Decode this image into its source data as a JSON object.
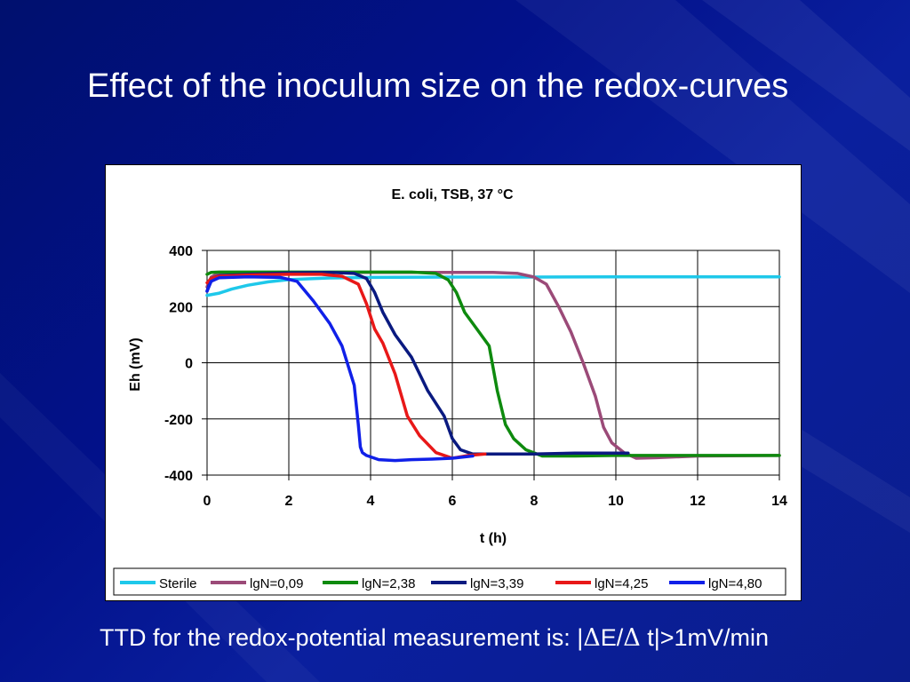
{
  "slide": {
    "title": "Effect of the inoculum size on the redox-curves",
    "footer_prefix": "TTD for the redox-potential measurement is: |",
    "footer_delta1": "Δ",
    "footer_mid": "E/",
    "footer_delta2": "Δ",
    "footer_suffix": " t|>1mV/min",
    "background_color": "#02118a"
  },
  "chart_data": {
    "type": "line",
    "title": "E. coli, TSB, 37 °C",
    "xlabel": "t (h)",
    "ylabel": "Eh (mV)",
    "xlim": [
      0,
      14
    ],
    "ylim": [
      -400,
      400
    ],
    "xticks": [
      0,
      2,
      4,
      6,
      8,
      10,
      12,
      14
    ],
    "yticks": [
      -400,
      -200,
      0,
      200,
      400
    ],
    "xtick_labels": [
      "0",
      "2",
      "4",
      "6",
      "8",
      "10",
      "12",
      "14"
    ],
    "ytick_labels": [
      "-400",
      "-200",
      "0",
      "200",
      "400"
    ],
    "grid": true,
    "legend_position": "bottom",
    "series": [
      {
        "name": "Sterile",
        "color": "#1ec8ea",
        "x": [
          0,
          0.3,
          0.6,
          1.0,
          1.5,
          2.0,
          3.0,
          4.0,
          6.0,
          8.0,
          10.0,
          12.0,
          14.0
        ],
        "y": [
          240,
          248,
          262,
          276,
          288,
          296,
          302,
          304,
          305,
          305,
          306,
          306,
          306
        ]
      },
      {
        "name": "lgN=0,09",
        "color": "#9b4a78",
        "x": [
          0,
          0.1,
          0.3,
          1.0,
          3.0,
          5.0,
          7.0,
          7.6,
          8.0,
          8.3,
          8.6,
          8.9,
          9.2,
          9.5,
          9.7,
          9.9,
          10.2,
          10.5,
          11.0,
          12.0,
          14.0
        ],
        "y": [
          270,
          305,
          320,
          322,
          322,
          322,
          322,
          318,
          305,
          280,
          200,
          110,
          0,
          -120,
          -230,
          -285,
          -320,
          -340,
          -338,
          -332,
          -330
        ]
      },
      {
        "name": "lgN=2,38",
        "color": "#0e8a0e",
        "x": [
          0,
          0.1,
          0.3,
          1.0,
          3.0,
          5.0,
          5.6,
          5.9,
          6.1,
          6.3,
          6.6,
          6.9,
          7.1,
          7.3,
          7.5,
          7.8,
          8.2,
          9.0,
          10.0,
          12.0,
          14.0
        ],
        "y": [
          315,
          322,
          323,
          323,
          323,
          323,
          318,
          295,
          250,
          180,
          120,
          60,
          -100,
          -220,
          -270,
          -310,
          -332,
          -332,
          -330,
          -330,
          -330
        ]
      },
      {
        "name": "lgN=3,39",
        "color": "#0a1a80",
        "x": [
          0,
          0.1,
          0.3,
          1.0,
          2.0,
          3.0,
          3.6,
          3.9,
          4.1,
          4.3,
          4.6,
          5.0,
          5.4,
          5.8,
          6.0,
          6.2,
          6.5,
          7.0,
          8.0,
          9.0,
          10.3
        ],
        "y": [
          255,
          300,
          310,
          315,
          320,
          322,
          318,
          300,
          250,
          180,
          100,
          20,
          -100,
          -190,
          -270,
          -310,
          -325,
          -325,
          -325,
          -322,
          -322
        ]
      },
      {
        "name": "lgN=4,25",
        "color": "#e81818",
        "x": [
          0,
          0.1,
          0.3,
          1.0,
          2.0,
          2.8,
          3.3,
          3.7,
          3.9,
          4.1,
          4.3,
          4.6,
          4.9,
          5.2,
          5.6,
          6.0,
          6.4,
          6.8
        ],
        "y": [
          285,
          300,
          308,
          312,
          315,
          315,
          308,
          280,
          210,
          120,
          70,
          -40,
          -190,
          -260,
          -320,
          -340,
          -330,
          -325
        ]
      },
      {
        "name": "lgN=4,80",
        "color": "#1020e8",
        "x": [
          0,
          0.1,
          0.3,
          1.0,
          1.8,
          2.2,
          2.6,
          3.0,
          3.3,
          3.6,
          3.7,
          3.75,
          3.8,
          3.9,
          4.2,
          4.6,
          5.0,
          5.5,
          6.0,
          6.5
        ],
        "y": [
          255,
          290,
          303,
          306,
          304,
          290,
          220,
          140,
          60,
          -80,
          -220,
          -300,
          -320,
          -330,
          -345,
          -348,
          -345,
          -343,
          -340,
          -332
        ]
      }
    ]
  }
}
